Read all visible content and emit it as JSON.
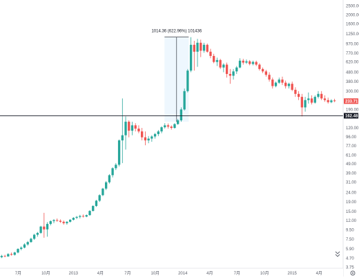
{
  "chart_data": {
    "type": "candlestick",
    "title": "",
    "xlabel": "",
    "ylabel": "",
    "scale": "log",
    "ylim": [
      3.65,
      2800
    ],
    "grid": false,
    "colors": {
      "up": "#26a69a",
      "down": "#ef5350",
      "crosshair": "#131722",
      "axis_text": "#5a5e69",
      "measure_fill": "#e3f2fd",
      "measure_line": "#5b6bff"
    },
    "y_ticks": [
      "3.75",
      "4.70",
      "5.90",
      "7.50",
      "9.50",
      "12.00",
      "15.00",
      "19.00",
      "24.00",
      "31.00",
      "39.00",
      "49.00",
      "61.00",
      "77.00",
      "96.00",
      "120.00",
      "190.00",
      "240.00",
      "300.00",
      "380.00",
      "480.00",
      "620.00",
      "770.00",
      "970.00",
      "1250.00",
      "1600.00",
      "2000.00",
      "2500.00"
    ],
    "y_tick_values": [
      3.75,
      4.7,
      5.9,
      7.5,
      9.5,
      12,
      15,
      19,
      24,
      31,
      39,
      49,
      61,
      77,
      96,
      120,
      190,
      240,
      300,
      380,
      480,
      620,
      770,
      970,
      1250,
      1600,
      2000,
      2500
    ],
    "x_ticks": [
      "7月",
      "10月",
      "2013",
      "4月",
      "7月",
      "10月",
      "2014",
      "4月",
      "7月",
      "10月",
      "2015",
      "4月"
    ],
    "x_tick_dates": [
      "2012-07",
      "2012-10",
      "2013-01",
      "2013-04",
      "2013-07",
      "2013-10",
      "2014-01",
      "2014-04",
      "2014-07",
      "2014-10",
      "2015-01",
      "2015-04"
    ],
    "measure_label": "1014.36 (622.96%) 101436",
    "measure_range": {
      "from": "2013-11",
      "to": "2013-12",
      "low": 140,
      "high": 1150
    },
    "crosshair_value": "162.48",
    "crosshair_y": 162.48,
    "last_price": "233.71",
    "last_price_y": 233.71,
    "candles": [
      {
        "o": 4.8,
        "h": 5.1,
        "l": 4.7,
        "c": 4.95
      },
      {
        "o": 4.95,
        "h": 5.1,
        "l": 4.8,
        "c": 4.9
      },
      {
        "o": 4.9,
        "h": 5.3,
        "l": 4.85,
        "c": 5.2
      },
      {
        "o": 5.2,
        "h": 5.4,
        "l": 5.0,
        "c": 5.1
      },
      {
        "o": 5.1,
        "h": 5.5,
        "l": 5.0,
        "c": 5.4
      },
      {
        "o": 5.4,
        "h": 6.0,
        "l": 5.3,
        "c": 5.9
      },
      {
        "o": 5.9,
        "h": 6.3,
        "l": 5.7,
        "c": 6.1
      },
      {
        "o": 6.1,
        "h": 6.8,
        "l": 6.0,
        "c": 6.6
      },
      {
        "o": 6.6,
        "h": 7.2,
        "l": 6.4,
        "c": 7.0
      },
      {
        "o": 7.0,
        "h": 7.8,
        "l": 6.9,
        "c": 7.6
      },
      {
        "o": 7.6,
        "h": 8.6,
        "l": 7.4,
        "c": 8.4
      },
      {
        "o": 8.4,
        "h": 9.0,
        "l": 8.0,
        "c": 8.8
      },
      {
        "o": 8.8,
        "h": 10.5,
        "l": 8.6,
        "c": 10.3
      },
      {
        "o": 10.3,
        "h": 14.5,
        "l": 7.8,
        "c": 9.6
      },
      {
        "o": 9.6,
        "h": 11.5,
        "l": 8.0,
        "c": 11.0
      },
      {
        "o": 11.0,
        "h": 12.0,
        "l": 10.6,
        "c": 11.8
      },
      {
        "o": 11.8,
        "h": 12.4,
        "l": 11.2,
        "c": 12.1
      },
      {
        "o": 12.1,
        "h": 12.6,
        "l": 11.6,
        "c": 11.9
      },
      {
        "o": 11.9,
        "h": 12.3,
        "l": 11.3,
        "c": 11.6
      },
      {
        "o": 11.6,
        "h": 12.0,
        "l": 10.8,
        "c": 11.2
      },
      {
        "o": 11.2,
        "h": 11.8,
        "l": 10.8,
        "c": 11.6
      },
      {
        "o": 11.6,
        "h": 12.4,
        "l": 11.4,
        "c": 12.2
      },
      {
        "o": 12.2,
        "h": 13.0,
        "l": 12.0,
        "c": 12.8
      },
      {
        "o": 12.8,
        "h": 13.4,
        "l": 12.4,
        "c": 13.1
      },
      {
        "o": 13.1,
        "h": 13.8,
        "l": 12.6,
        "c": 13.4
      },
      {
        "o": 13.4,
        "h": 13.9,
        "l": 12.9,
        "c": 13.2
      },
      {
        "o": 13.2,
        "h": 13.9,
        "l": 13.0,
        "c": 13.7
      },
      {
        "o": 13.7,
        "h": 15.5,
        "l": 13.5,
        "c": 15.2
      },
      {
        "o": 15.2,
        "h": 17.5,
        "l": 15.0,
        "c": 17.2
      },
      {
        "o": 17.2,
        "h": 20.0,
        "l": 16.8,
        "c": 19.6
      },
      {
        "o": 19.6,
        "h": 23.0,
        "l": 19.0,
        "c": 22.5
      },
      {
        "o": 22.5,
        "h": 27.0,
        "l": 22.0,
        "c": 26.5
      },
      {
        "o": 26.5,
        "h": 32.0,
        "l": 25.5,
        "c": 31.0
      },
      {
        "o": 31.0,
        "h": 38.0,
        "l": 30.0,
        "c": 37.0
      },
      {
        "o": 37.0,
        "h": 45.0,
        "l": 35.0,
        "c": 44.0
      },
      {
        "o": 44.0,
        "h": 50.0,
        "l": 42.0,
        "c": 48.0
      },
      {
        "o": 48.0,
        "h": 90.0,
        "l": 46.0,
        "c": 88.0
      },
      {
        "o": 88.0,
        "h": 250.0,
        "l": 50.0,
        "c": 100.0
      },
      {
        "o": 100.0,
        "h": 160.0,
        "l": 70.0,
        "c": 140.0
      },
      {
        "o": 140.0,
        "h": 145.0,
        "l": 95.0,
        "c": 112.0
      },
      {
        "o": 112.0,
        "h": 140.0,
        "l": 100.0,
        "c": 128.0
      },
      {
        "o": 128.0,
        "h": 135.0,
        "l": 110.0,
        "c": 118.0
      },
      {
        "o": 118.0,
        "h": 128.0,
        "l": 105.0,
        "c": 110.0
      },
      {
        "o": 110.0,
        "h": 120.0,
        "l": 88.0,
        "c": 95.0
      },
      {
        "o": 95.0,
        "h": 110.0,
        "l": 78.0,
        "c": 88.0
      },
      {
        "o": 88.0,
        "h": 98.0,
        "l": 82.0,
        "c": 92.0
      },
      {
        "o": 92.0,
        "h": 100.0,
        "l": 85.0,
        "c": 97.0
      },
      {
        "o": 97.0,
        "h": 106.0,
        "l": 92.0,
        "c": 103.0
      },
      {
        "o": 103.0,
        "h": 114.0,
        "l": 98.0,
        "c": 110.0
      },
      {
        "o": 110.0,
        "h": 125.0,
        "l": 105.0,
        "c": 122.0
      },
      {
        "o": 122.0,
        "h": 135.0,
        "l": 118.0,
        "c": 128.0
      },
      {
        "o": 128.0,
        "h": 134.0,
        "l": 118.0,
        "c": 124.0
      },
      {
        "o": 124.0,
        "h": 128.0,
        "l": 115.0,
        "c": 120.0
      },
      {
        "o": 120.0,
        "h": 135.0,
        "l": 118.0,
        "c": 132.0
      },
      {
        "o": 132.0,
        "h": 150.0,
        "l": 130.0,
        "c": 145.0
      },
      {
        "o": 145.0,
        "h": 200.0,
        "l": 140.0,
        "c": 190.0
      },
      {
        "o": 190.0,
        "h": 320.0,
        "l": 185.0,
        "c": 300.0
      },
      {
        "o": 300.0,
        "h": 520.0,
        "l": 290.0,
        "c": 500.0
      },
      {
        "o": 500.0,
        "h": 1150.0,
        "l": 480.0,
        "c": 950.0
      },
      {
        "o": 950.0,
        "h": 1050.0,
        "l": 500.0,
        "c": 800.0
      },
      {
        "o": 800.0,
        "h": 1100.0,
        "l": 550.0,
        "c": 1000.0
      },
      {
        "o": 1000.0,
        "h": 1080.0,
        "l": 700.0,
        "c": 820.0
      },
      {
        "o": 820.0,
        "h": 1000.0,
        "l": 780.0,
        "c": 950.0
      },
      {
        "o": 950.0,
        "h": 980.0,
        "l": 780.0,
        "c": 800.0
      },
      {
        "o": 800.0,
        "h": 860.0,
        "l": 680.0,
        "c": 720.0
      },
      {
        "o": 720.0,
        "h": 760.0,
        "l": 600.0,
        "c": 620.0
      },
      {
        "o": 620.0,
        "h": 690.0,
        "l": 560.0,
        "c": 650.0
      },
      {
        "o": 650.0,
        "h": 670.0,
        "l": 520.0,
        "c": 540.0
      },
      {
        "o": 540.0,
        "h": 600.0,
        "l": 480.0,
        "c": 580.0
      },
      {
        "o": 580.0,
        "h": 610.0,
        "l": 420.0,
        "c": 460.0
      },
      {
        "o": 460.0,
        "h": 520.0,
        "l": 360.0,
        "c": 440.0
      },
      {
        "o": 440.0,
        "h": 520.0,
        "l": 400.0,
        "c": 490.0
      },
      {
        "o": 490.0,
        "h": 560.0,
        "l": 460.0,
        "c": 540.0
      },
      {
        "o": 540.0,
        "h": 680.0,
        "l": 530.0,
        "c": 640.0
      },
      {
        "o": 640.0,
        "h": 670.0,
        "l": 580.0,
        "c": 610.0
      },
      {
        "o": 610.0,
        "h": 660.0,
        "l": 590.0,
        "c": 630.0
      },
      {
        "o": 630.0,
        "h": 650.0,
        "l": 570.0,
        "c": 590.0
      },
      {
        "o": 590.0,
        "h": 640.0,
        "l": 570.0,
        "c": 620.0
      },
      {
        "o": 620.0,
        "h": 640.0,
        "l": 560.0,
        "c": 580.0
      },
      {
        "o": 580.0,
        "h": 600.0,
        "l": 500.0,
        "c": 520.0
      },
      {
        "o": 520.0,
        "h": 540.0,
        "l": 470.0,
        "c": 490.0
      },
      {
        "o": 490.0,
        "h": 510.0,
        "l": 430.0,
        "c": 450.0
      },
      {
        "o": 450.0,
        "h": 480.0,
        "l": 380.0,
        "c": 400.0
      },
      {
        "o": 400.0,
        "h": 420.0,
        "l": 320.0,
        "c": 340.0
      },
      {
        "o": 340.0,
        "h": 380.0,
        "l": 330.0,
        "c": 370.0
      },
      {
        "o": 370.0,
        "h": 420.0,
        "l": 360.0,
        "c": 400.0
      },
      {
        "o": 400.0,
        "h": 430.0,
        "l": 350.0,
        "c": 370.0
      },
      {
        "o": 370.0,
        "h": 390.0,
        "l": 320.0,
        "c": 340.0
      },
      {
        "o": 340.0,
        "h": 370.0,
        "l": 320.0,
        "c": 360.0
      },
      {
        "o": 360.0,
        "h": 380.0,
        "l": 300.0,
        "c": 310.0
      },
      {
        "o": 310.0,
        "h": 330.0,
        "l": 260.0,
        "c": 280.0
      },
      {
        "o": 280.0,
        "h": 300.0,
        "l": 240.0,
        "c": 260.0
      },
      {
        "o": 260.0,
        "h": 280.0,
        "l": 160.0,
        "c": 200.0
      },
      {
        "o": 200.0,
        "h": 260.0,
        "l": 180.0,
        "c": 240.0
      },
      {
        "o": 240.0,
        "h": 290.0,
        "l": 220.0,
        "c": 250.0
      },
      {
        "o": 250.0,
        "h": 270.0,
        "l": 215.0,
        "c": 225.0
      },
      {
        "o": 225.0,
        "h": 270.0,
        "l": 220.0,
        "c": 260.0
      },
      {
        "o": 260.0,
        "h": 300.0,
        "l": 250.0,
        "c": 280.0
      },
      {
        "o": 280.0,
        "h": 300.0,
        "l": 240.0,
        "c": 250.0
      },
      {
        "o": 250.0,
        "h": 270.0,
        "l": 230.0,
        "c": 240.0
      },
      {
        "o": 240.0,
        "h": 255.0,
        "l": 220.0,
        "c": 228.0
      },
      {
        "o": 228.0,
        "h": 245.0,
        "l": 222.0,
        "c": 238.0
      },
      {
        "o": 238.0,
        "h": 248.0,
        "l": 228.0,
        "c": 233.71
      }
    ]
  },
  "ui": {
    "scroll_arrow_icon": "chevron-double-down-icon",
    "settings_icon": "gear-icon"
  }
}
